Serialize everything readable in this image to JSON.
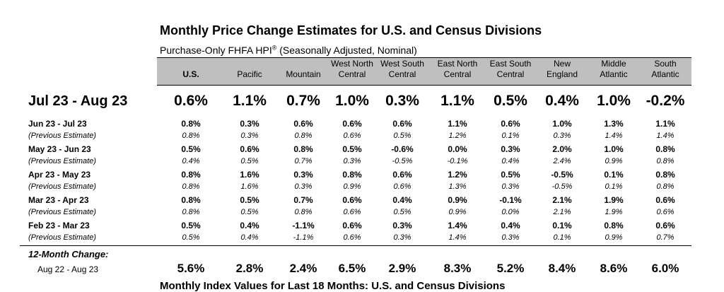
{
  "title": "Monthly Price Change Estimates for U.S. and Census Divisions",
  "subtitle": "Purchase-Only FHFA HPI",
  "subtitle_mark": "®",
  "subtitle_note": "(Seasonally Adjusted, Nominal)",
  "columns": [
    {
      "l1": "",
      "l2": "U.S."
    },
    {
      "l1": "",
      "l2": "Pacific"
    },
    {
      "l1": "",
      "l2": "Mountain"
    },
    {
      "l1": "West North",
      "l2": "Central"
    },
    {
      "l1": "West South",
      "l2": "Central"
    },
    {
      "l1": "East North",
      "l2": "Central"
    },
    {
      "l1": "East South",
      "l2": "Central"
    },
    {
      "l1": "New",
      "l2": "England"
    },
    {
      "l1": "Middle",
      "l2": "Atlantic"
    },
    {
      "l1": "South",
      "l2": "Atlantic"
    }
  ],
  "headline": {
    "label": "Jul 23 - Aug 23",
    "values": [
      "0.6%",
      "1.1%",
      "0.7%",
      "1.0%",
      "0.3%",
      "1.1%",
      "0.5%",
      "0.4%",
      "1.0%",
      "-0.2%"
    ]
  },
  "rows": [
    {
      "label": "Jun  23 - Jul 23",
      "values": [
        "0.8%",
        "0.3%",
        "0.6%",
        "0.6%",
        "0.6%",
        "1.1%",
        "0.6%",
        "1.0%",
        "1.3%",
        "1.1%"
      ],
      "prev_label": "(Previous Estimate)",
      "prev": [
        "0.8%",
        "0.3%",
        "0.8%",
        "0.6%",
        "0.5%",
        "1.2%",
        "0.1%",
        "0.3%",
        "1.4%",
        "1.4%"
      ]
    },
    {
      "label": "May  23 - Jun 23",
      "values": [
        "0.5%",
        "0.6%",
        "0.8%",
        "0.5%",
        "-0.6%",
        "0.0%",
        "0.3%",
        "2.0%",
        "1.0%",
        "0.8%"
      ],
      "prev_label": "(Previous Estimate)",
      "prev": [
        "0.4%",
        "0.5%",
        "0.7%",
        "0.3%",
        "-0.5%",
        "-0.1%",
        "0.4%",
        "2.4%",
        "0.9%",
        "0.8%"
      ]
    },
    {
      "label": "Apr  23 - May 23",
      "values": [
        "0.8%",
        "1.6%",
        "0.3%",
        "0.8%",
        "0.6%",
        "1.2%",
        "0.5%",
        "-0.5%",
        "0.1%",
        "0.8%"
      ],
      "prev_label": "(Previous Estimate)",
      "prev": [
        "0.8%",
        "1.6%",
        "0.3%",
        "0.9%",
        "0.6%",
        "1.3%",
        "0.3%",
        "-0.5%",
        "0.1%",
        "0.8%"
      ]
    },
    {
      "label": "Mar  23 - Apr 23",
      "values": [
        "0.8%",
        "0.5%",
        "0.7%",
        "0.6%",
        "0.4%",
        "0.9%",
        "-0.1%",
        "2.1%",
        "1.9%",
        "0.6%"
      ],
      "prev_label": "(Previous Estimate)",
      "prev": [
        "0.8%",
        "0.5%",
        "0.8%",
        "0.6%",
        "0.5%",
        "0.9%",
        "0.0%",
        "2.1%",
        "1.9%",
        "0.6%"
      ]
    },
    {
      "label": "Feb  23 - Mar 23",
      "values": [
        "0.5%",
        "0.4%",
        "-1.1%",
        "0.6%",
        "0.3%",
        "1.4%",
        "0.4%",
        "0.1%",
        "0.8%",
        "0.6%"
      ],
      "prev_label": "(Previous Estimate)",
      "prev": [
        "0.5%",
        "0.4%",
        "-1.1%",
        "0.6%",
        "0.3%",
        "1.4%",
        "0.3%",
        "0.1%",
        "0.9%",
        "0.7%"
      ]
    }
  ],
  "twelve_month": {
    "heading": "12-Month Change:",
    "label": "Aug  22 - Aug 23",
    "values": [
      "5.6%",
      "2.8%",
      "2.4%",
      "6.5%",
      "2.9%",
      "8.3%",
      "5.2%",
      "8.4%",
      "8.6%",
      "6.0%"
    ]
  },
  "next_title": "Monthly Index Values for Last 18 Months: U.S. and Census Divisions"
}
